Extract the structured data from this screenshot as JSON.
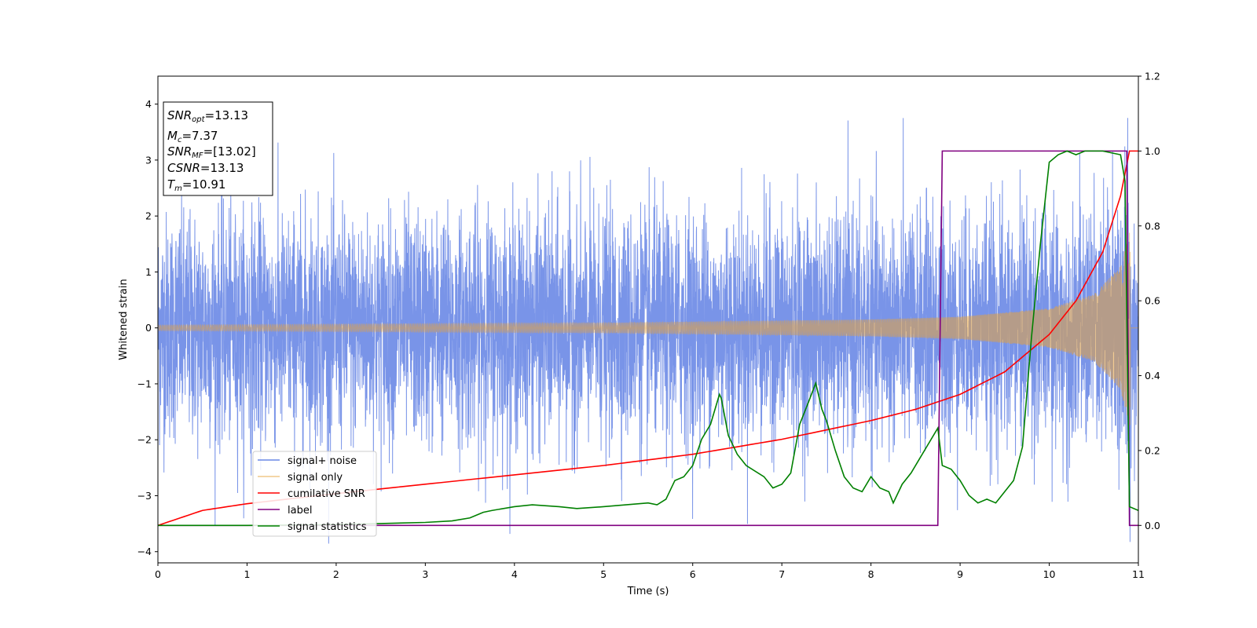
{
  "chart_data": {
    "type": "line",
    "xlabel": "Time (s)",
    "ylabel": "Whitened strain",
    "xlim": [
      0,
      11
    ],
    "ylim": [
      -4.2,
      4.5
    ],
    "y2lim": [
      -0.1,
      1.2
    ],
    "x_ticks": [
      "0",
      "1",
      "2",
      "3",
      "4",
      "5",
      "6",
      "7",
      "8",
      "9",
      "10",
      "11"
    ],
    "y_ticks": [
      "−4",
      "−3",
      "−2",
      "−1",
      "0",
      "1",
      "2",
      "3",
      "4"
    ],
    "y2_ticks": [
      "0.0",
      "0.2",
      "0.4",
      "0.6",
      "0.8",
      "1.0",
      "1.2"
    ],
    "info_box": {
      "snr_opt": {
        "sym": "SNR",
        "sub": "opt",
        "value": "=13.13"
      },
      "mc": {
        "sym": "M",
        "sub": "c",
        "value": "=7.37"
      },
      "snr_mf": {
        "sym": "SNR",
        "sub": "MF",
        "value": "=[13.02]"
      },
      "csnr": {
        "sym": "CSNR",
        "sub": "",
        "value": "=13.13"
      },
      "tm": {
        "sym": "T",
        "sub": "m",
        "value": "=10.91"
      }
    },
    "legend": [
      "signal+ noise",
      "signal only",
      "cumilative SNR",
      "label",
      "signal statistics"
    ],
    "legend_position": "lower-left",
    "series": [
      {
        "name": "signal+ noise",
        "axis": "left",
        "color": "#6a88e6",
        "noise_std": 1.0
      },
      {
        "name": "signal only",
        "axis": "left",
        "color": "#e8a33a",
        "amplitude_at_x": [
          [
            0,
            0.05
          ],
          [
            5,
            0.09
          ],
          [
            8,
            0.15
          ],
          [
            9,
            0.2
          ],
          [
            10,
            0.35
          ],
          [
            10.5,
            0.6
          ],
          [
            10.8,
            1.1
          ],
          [
            10.91,
            1.8
          ],
          [
            11,
            0
          ]
        ]
      },
      {
        "name": "cumilative SNR",
        "axis": "right",
        "color": "#ff0000",
        "x": [
          0,
          0.5,
          1,
          2,
          3,
          4,
          5,
          6,
          7,
          8,
          8.5,
          9,
          9.5,
          10,
          10.3,
          10.6,
          10.8,
          10.9,
          11
        ],
        "y": [
          0.0,
          0.04,
          0.058,
          0.085,
          0.11,
          0.135,
          0.16,
          0.19,
          0.23,
          0.28,
          0.31,
          0.35,
          0.41,
          0.51,
          0.6,
          0.73,
          0.88,
          1.0,
          1.0
        ]
      },
      {
        "name": "label",
        "axis": "right",
        "color": "#800080",
        "x": [
          0,
          8.75,
          8.8,
          10.87,
          10.9,
          11
        ],
        "y": [
          0,
          0,
          1,
          1,
          0,
          0
        ]
      },
      {
        "name": "signal statistics",
        "axis": "right",
        "color": "#008000",
        "x": [
          0,
          1,
          2,
          2.5,
          3,
          3.3,
          3.5,
          3.6,
          3.65,
          3.75,
          4,
          4.2,
          4.5,
          4.7,
          5,
          5.5,
          5.6,
          5.7,
          5.8,
          5.9,
          6,
          6.1,
          6.2,
          6.3,
          6.32,
          6.4,
          6.5,
          6.6,
          6.8,
          6.9,
          7.0,
          7.1,
          7.2,
          7.3,
          7.38,
          7.45,
          7.5,
          7.6,
          7.7,
          7.8,
          7.9,
          8.0,
          8.1,
          8.2,
          8.25,
          8.35,
          8.45,
          8.55,
          8.65,
          8.75,
          8.8,
          8.9,
          9.0,
          9.1,
          9.2,
          9.3,
          9.4,
          9.5,
          9.6,
          9.7,
          9.8,
          9.9,
          10.0,
          10.1,
          10.2,
          10.3,
          10.4,
          10.6,
          10.8,
          10.85,
          10.9,
          11
        ],
        "y": [
          0,
          0,
          0.002,
          0.005,
          0.008,
          0.012,
          0.02,
          0.03,
          0.035,
          0.04,
          0.05,
          0.055,
          0.05,
          0.045,
          0.05,
          0.06,
          0.055,
          0.07,
          0.12,
          0.13,
          0.16,
          0.23,
          0.27,
          0.35,
          0.34,
          0.24,
          0.19,
          0.16,
          0.13,
          0.1,
          0.11,
          0.14,
          0.27,
          0.33,
          0.38,
          0.31,
          0.28,
          0.2,
          0.13,
          0.1,
          0.09,
          0.13,
          0.1,
          0.09,
          0.06,
          0.11,
          0.14,
          0.18,
          0.22,
          0.26,
          0.16,
          0.15,
          0.12,
          0.08,
          0.06,
          0.07,
          0.06,
          0.09,
          0.12,
          0.21,
          0.5,
          0.75,
          0.97,
          0.99,
          1.0,
          0.99,
          1.0,
          1.0,
          0.99,
          0.92,
          0.05,
          0.04
        ]
      }
    ]
  }
}
